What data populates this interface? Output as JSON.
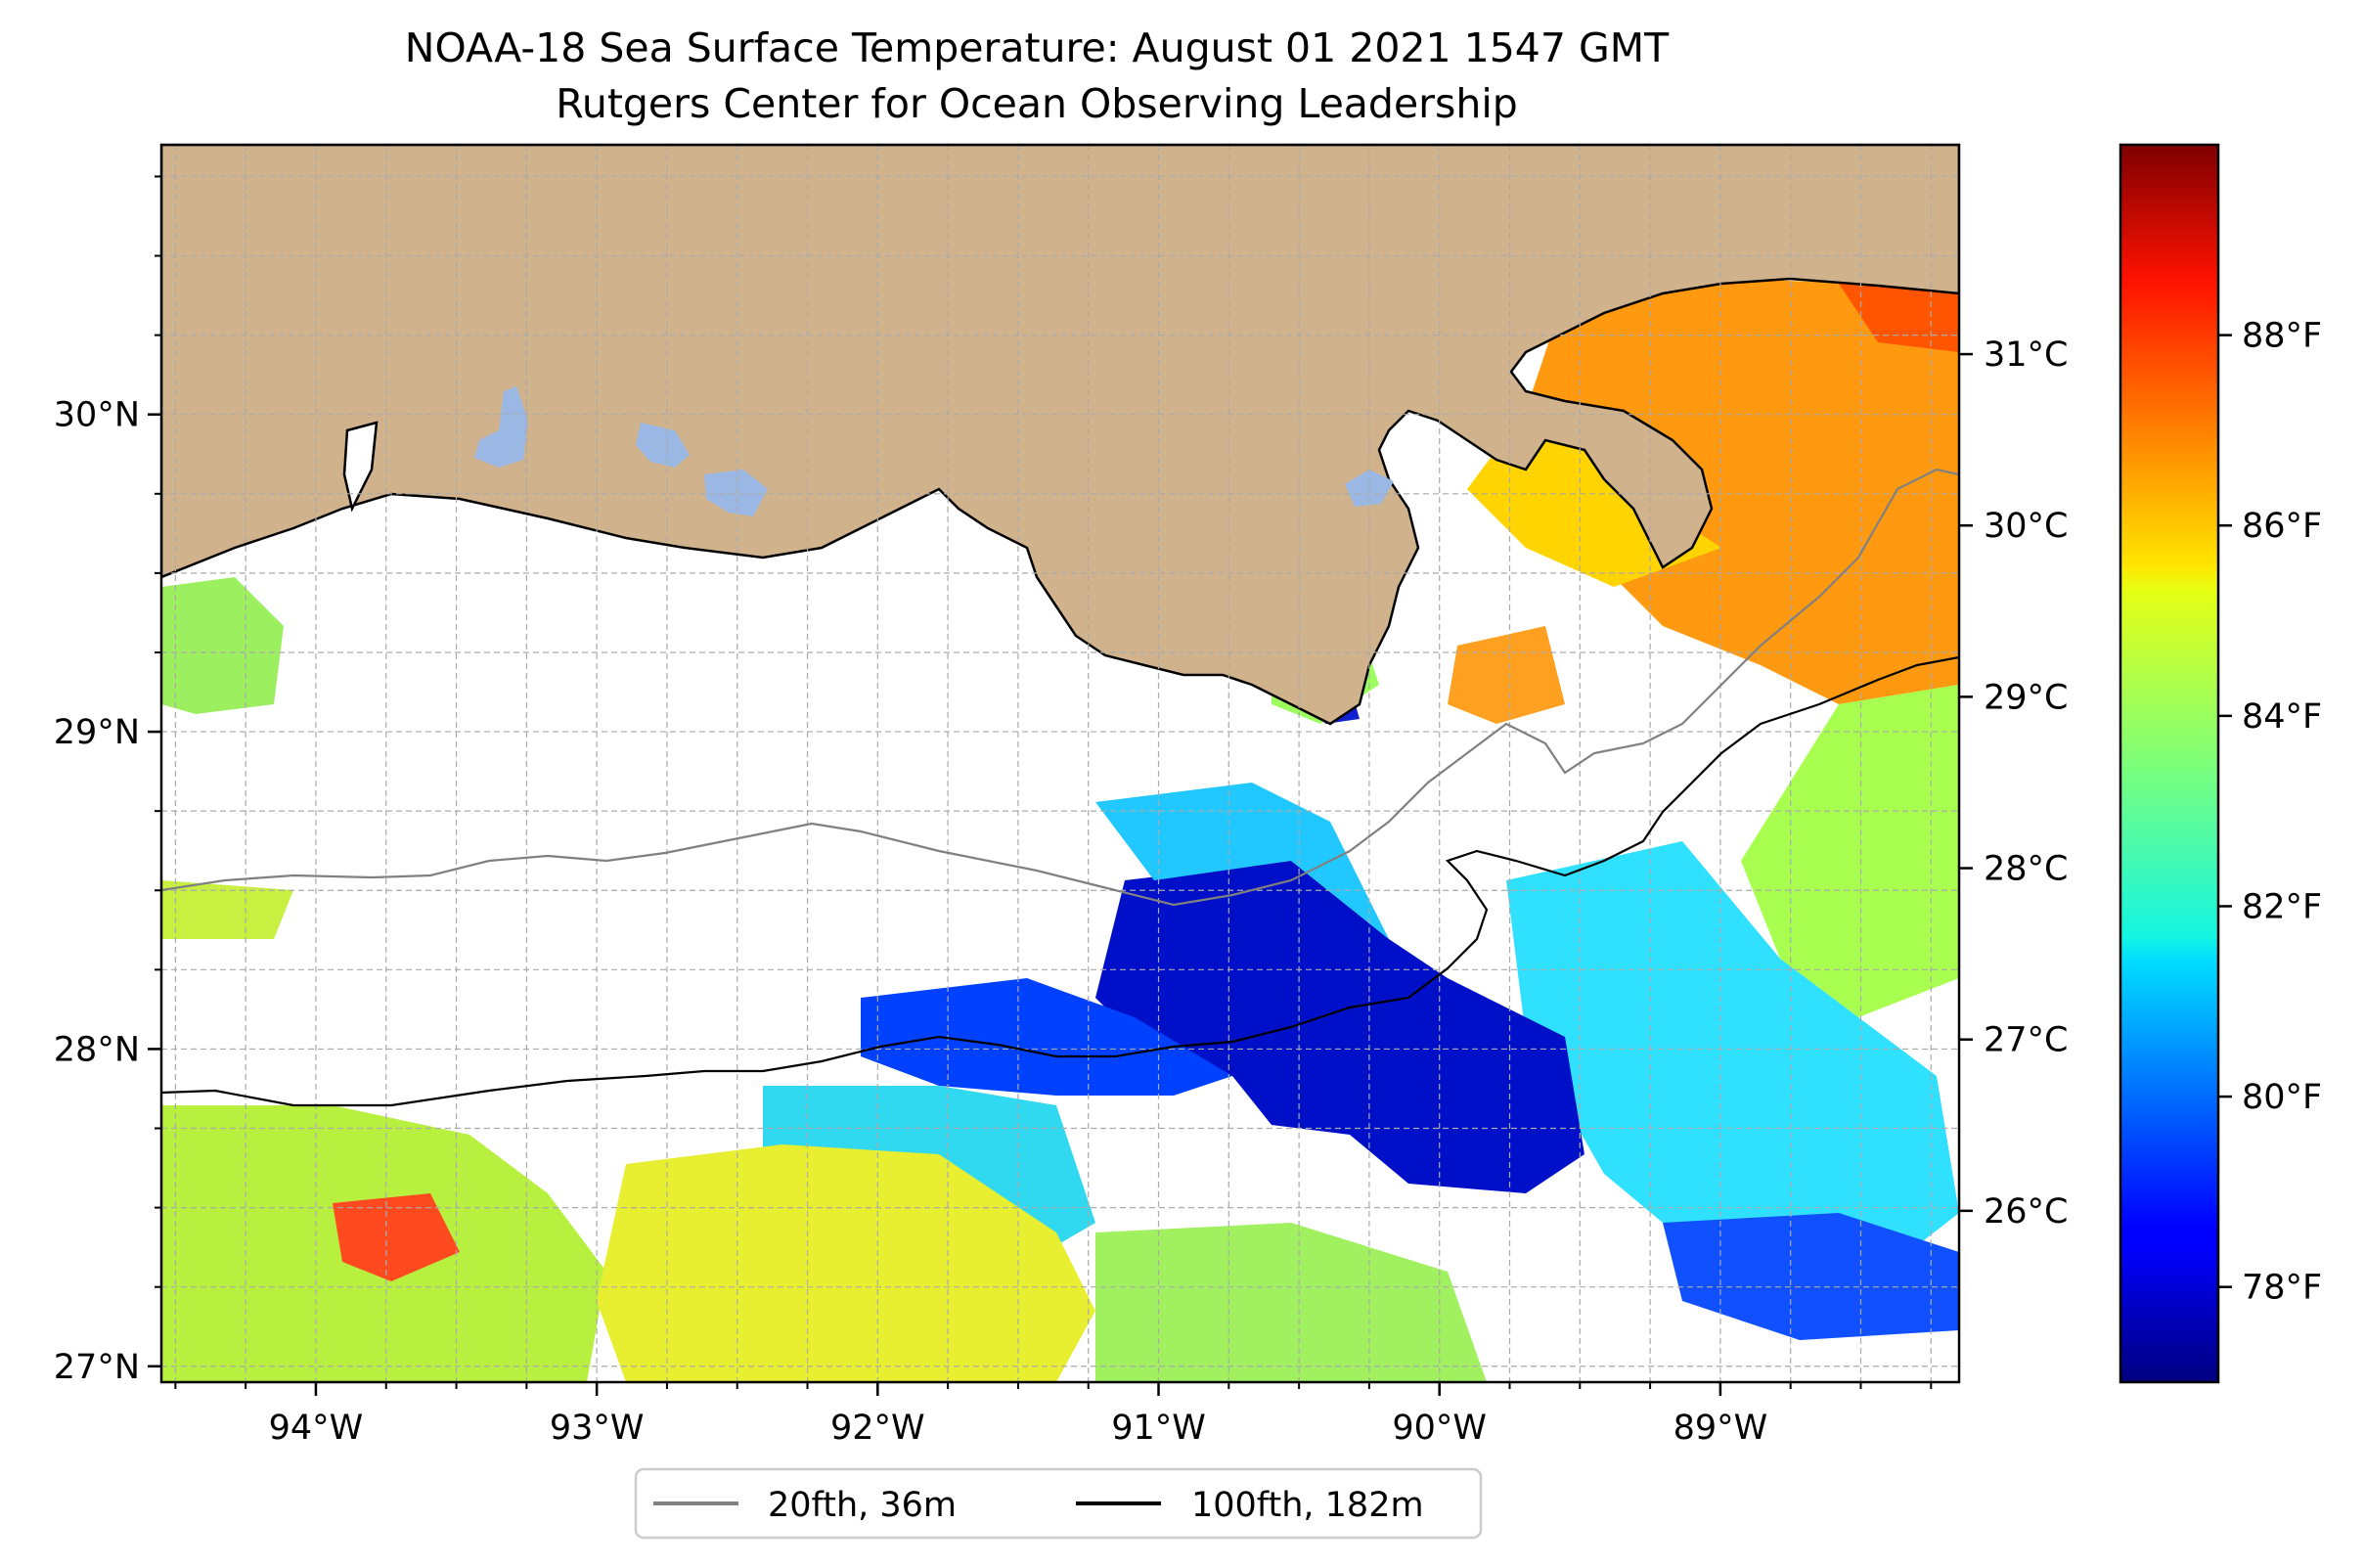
{
  "title": {
    "line1": "NOAA-18 Sea Surface Temperature: August 01 2021 1547 GMT",
    "line2": "Rutgers Center for Ocean Observing Leadership"
  },
  "map": {
    "lon_range": [
      -94.55,
      -88.15
    ],
    "lat_range": [
      26.95,
      30.85
    ],
    "lon_ticks": [
      {
        "value": -94,
        "label": "94°W"
      },
      {
        "value": -93,
        "label": "93°W"
      },
      {
        "value": -92,
        "label": "92°W"
      },
      {
        "value": -91,
        "label": "91°W"
      },
      {
        "value": -90,
        "label": "90°W"
      },
      {
        "value": -89,
        "label": "89°W"
      }
    ],
    "lat_ticks": [
      {
        "value": 27,
        "label": "27°N"
      },
      {
        "value": 28,
        "label": "28°N"
      },
      {
        "value": 29,
        "label": "29°N"
      },
      {
        "value": 30,
        "label": "30°N"
      }
    ],
    "grid": true,
    "colors": {
      "land": "#d0b38d",
      "lakes": "#9ab8e3",
      "isobath_20": "#808080",
      "isobath_100": "#000000"
    }
  },
  "colorbar": {
    "colormap": "jet",
    "celsius_ticks": [
      {
        "value": 26,
        "label": "26°C"
      },
      {
        "value": 27,
        "label": "27°C"
      },
      {
        "value": 28,
        "label": "28°C"
      },
      {
        "value": 29,
        "label": "29°C"
      },
      {
        "value": 30,
        "label": "30°C"
      },
      {
        "value": 31,
        "label": "31°C"
      }
    ],
    "fahrenheit_ticks": [
      {
        "value": 78,
        "label": "78°F"
      },
      {
        "value": 80,
        "label": "80°F"
      },
      {
        "value": 82,
        "label": "82°F"
      },
      {
        "value": 84,
        "label": "84°F"
      },
      {
        "value": 86,
        "label": "86°F"
      },
      {
        "value": 88,
        "label": "88°F"
      }
    ],
    "range_f": [
      77,
      90
    ]
  },
  "legend": {
    "placement": "bottom-center",
    "entries": [
      {
        "label": "20fth, 36m",
        "color": "#808080"
      },
      {
        "label": "100fth, 182m",
        "color": "#000000"
      }
    ]
  }
}
